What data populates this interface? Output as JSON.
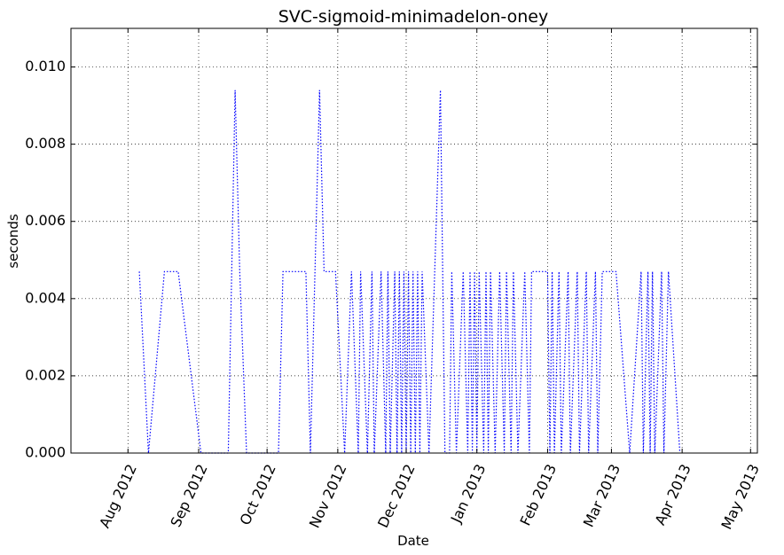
{
  "chart_data": {
    "type": "line",
    "title": "SVC-sigmoid-minimadelon-oney",
    "xlabel": "Date",
    "ylabel": "seconds",
    "xlim": [
      "2012-07-07",
      "2013-05-04"
    ],
    "ylim": [
      0,
      0.011
    ],
    "grid": true,
    "line_color": "#0000ff",
    "line_style": "dotted",
    "x_ticks": [
      {
        "date": "2012-08-01",
        "label": "Aug 2012"
      },
      {
        "date": "2012-09-01",
        "label": "Sep 2012"
      },
      {
        "date": "2012-10-01",
        "label": "Oct 2012"
      },
      {
        "date": "2012-11-01",
        "label": "Nov 2012"
      },
      {
        "date": "2012-12-01",
        "label": "Dec 2012"
      },
      {
        "date": "2013-01-01",
        "label": "Jan 2013"
      },
      {
        "date": "2013-02-01",
        "label": "Feb 2013"
      },
      {
        "date": "2013-03-01",
        "label": "Mar 2013"
      },
      {
        "date": "2013-04-01",
        "label": "Apr 2013"
      },
      {
        "date": "2013-05-01",
        "label": "May 2013"
      }
    ],
    "y_ticks": [
      {
        "value": 0,
        "label": "0.000"
      },
      {
        "value": 0.002,
        "label": "0.002"
      },
      {
        "value": 0.004,
        "label": "0.004"
      },
      {
        "value": 0.006,
        "label": "0.006"
      },
      {
        "value": 0.008,
        "label": "0.008"
      },
      {
        "value": 0.01,
        "label": "0.010"
      }
    ],
    "series": [
      {
        "x": [
          "2012-08-06",
          "2012-08-10",
          "2012-08-17",
          "2012-08-23",
          "2012-09-02",
          "2012-09-14",
          "2012-09-17",
          "2012-09-19",
          "2012-09-22",
          "2012-10-06",
          "2012-10-08",
          "2012-10-18",
          "2012-10-20",
          "2012-10-24",
          "2012-10-26",
          "2012-10-31",
          "2012-11-04",
          "2012-11-07",
          "2012-11-10",
          "2012-11-11",
          "2012-11-14",
          "2012-11-16",
          "2012-11-17",
          "2012-11-20",
          "2012-11-22",
          "2012-11-23",
          "2012-11-24",
          "2012-11-26",
          "2012-11-27",
          "2012-11-28",
          "2012-11-29",
          "2012-11-30",
          "2012-12-01",
          "2012-12-02",
          "2012-12-03",
          "2012-12-04",
          "2012-12-05",
          "2012-12-06",
          "2012-12-07",
          "2012-12-08",
          "2012-12-11",
          "2012-12-16",
          "2012-12-18",
          "2012-12-20",
          "2012-12-21",
          "2012-12-23",
          "2012-12-26",
          "2012-12-28",
          "2012-12-29",
          "2012-12-30",
          "2012-12-31",
          "2013-01-01",
          "2013-01-02",
          "2013-01-04",
          "2013-01-05",
          "2013-01-06",
          "2013-01-07",
          "2013-01-09",
          "2013-01-11",
          "2013-01-13",
          "2013-01-14",
          "2013-01-16",
          "2013-01-17",
          "2013-01-19",
          "2013-01-22",
          "2013-01-24",
          "2013-01-25",
          "2013-02-01",
          "2013-02-02",
          "2013-02-03",
          "2013-02-04",
          "2013-02-06",
          "2013-02-07",
          "2013-02-10",
          "2013-02-11",
          "2013-02-14",
          "2013-02-15",
          "2013-02-18",
          "2013-02-19",
          "2013-02-22",
          "2013-02-23",
          "2013-02-25",
          "2013-02-26",
          "2013-03-03",
          "2013-03-09",
          "2013-03-14",
          "2013-03-15",
          "2013-03-17",
          "2013-03-18",
          "2013-03-19",
          "2013-03-20",
          "2013-03-23",
          "2013-03-24",
          "2013-03-26",
          "2013-03-31"
        ],
        "y": [
          0.0047,
          0,
          0.0047,
          0.0047,
          0,
          0,
          0.0094,
          0.0047,
          0,
          0,
          0.0047,
          0.0047,
          0,
          0.0094,
          0.0047,
          0.0047,
          0,
          0.0047,
          0,
          0.0047,
          0,
          0.0047,
          0,
          0.0047,
          0,
          0.0047,
          0,
          0.0047,
          0,
          0.0047,
          0,
          0.0047,
          0,
          0.0047,
          0,
          0.0047,
          0,
          0.0047,
          0,
          0.0047,
          0,
          0.0094,
          0,
          0,
          0.0047,
          0,
          0.0047,
          0,
          0.0047,
          0,
          0.0047,
          0,
          0.0047,
          0,
          0.0047,
          0,
          0.0047,
          0,
          0.0047,
          0,
          0.0047,
          0,
          0.0047,
          0,
          0.0047,
          0,
          0.0047,
          0.0047,
          0,
          0.0047,
          0,
          0.0047,
          0,
          0.0047,
          0,
          0.0047,
          0,
          0.0047,
          0,
          0.0047,
          0,
          0.0047,
          0.0047,
          0.0047,
          0,
          0.0047,
          0,
          0.0047,
          0,
          0.0047,
          0,
          0.0047,
          0,
          0.0047,
          0
        ]
      }
    ]
  }
}
